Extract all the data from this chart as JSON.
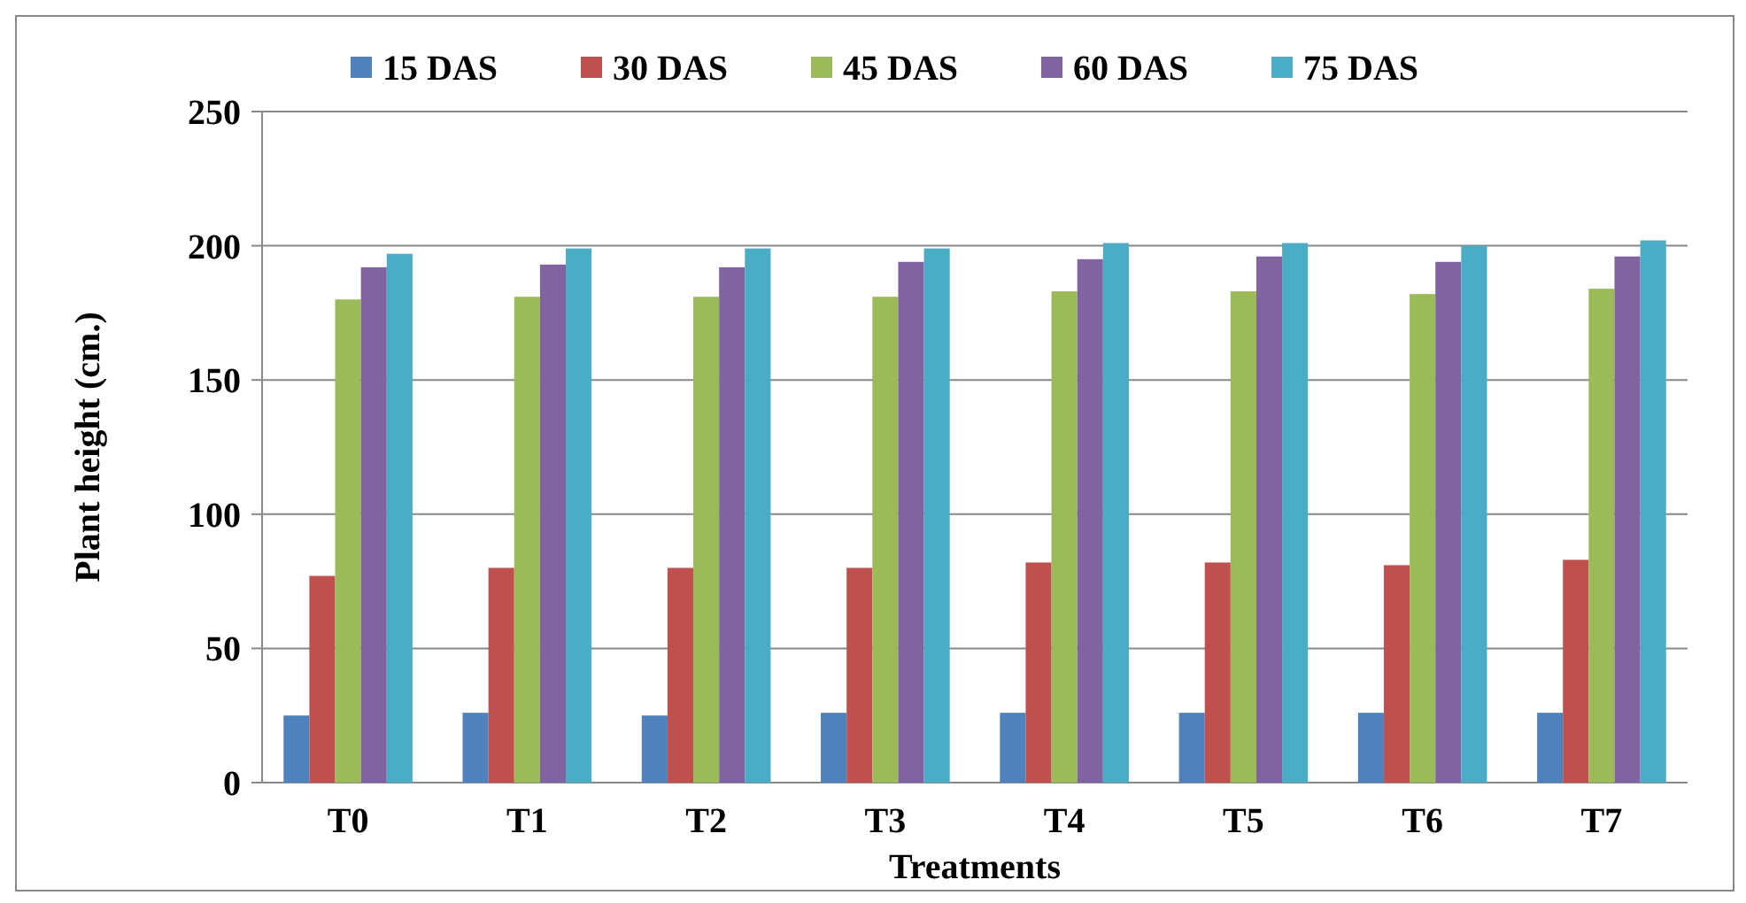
{
  "chart_data": {
    "type": "bar",
    "xlabel": "Treatments",
    "ylabel": "Plant height (cm.)",
    "categories": [
      "T0",
      "T1",
      "T2",
      "T3",
      "T4",
      "T5",
      "T6",
      "T7"
    ],
    "series": [
      {
        "name": "15 DAS",
        "color": "#4f81bd",
        "values": [
          25,
          26,
          25,
          26,
          26,
          26,
          26,
          26
        ]
      },
      {
        "name": "30 DAS",
        "color": "#c0504d",
        "values": [
          77,
          80,
          80,
          80,
          82,
          82,
          81,
          83
        ]
      },
      {
        "name": "45 DAS",
        "color": "#9bbb59",
        "values": [
          180,
          181,
          181,
          181,
          183,
          183,
          182,
          184
        ]
      },
      {
        "name": "60 DAS",
        "color": "#8064a2",
        "values": [
          192,
          193,
          192,
          194,
          195,
          196,
          194,
          196
        ]
      },
      {
        "name": "75 DAS",
        "color": "#4bacc6",
        "values": [
          197,
          199,
          199,
          199,
          201,
          201,
          200,
          202
        ]
      }
    ],
    "ylim": [
      0,
      250
    ],
    "yticks": [
      0,
      50,
      100,
      150,
      200,
      250
    ],
    "grid": "y",
    "legend": "top"
  }
}
